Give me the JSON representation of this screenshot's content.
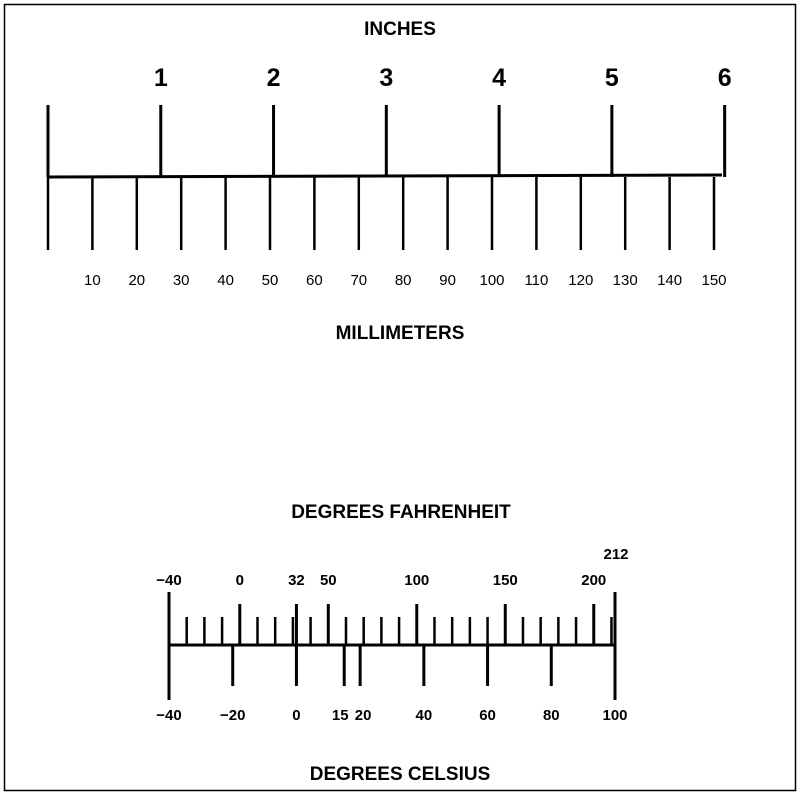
{
  "inch_scale": {
    "title": "INCHES",
    "unit_ticks": [
      {
        "value": 0,
        "label": ""
      },
      {
        "value": 1,
        "label": "1"
      },
      {
        "value": 2,
        "label": "2"
      },
      {
        "value": 3,
        "label": "3"
      },
      {
        "value": 4,
        "label": "4"
      },
      {
        "value": 5,
        "label": "5"
      },
      {
        "value": 6,
        "label": "6"
      }
    ]
  },
  "mm_scale": {
    "title": "MILLIMETERS",
    "ticks": [
      {
        "value": 0,
        "label": ""
      },
      {
        "value": 10,
        "label": "10"
      },
      {
        "value": 20,
        "label": "20"
      },
      {
        "value": 30,
        "label": "30"
      },
      {
        "value": 40,
        "label": "40"
      },
      {
        "value": 50,
        "label": "50"
      },
      {
        "value": 60,
        "label": "60"
      },
      {
        "value": 70,
        "label": "70"
      },
      {
        "value": 80,
        "label": "80"
      },
      {
        "value": 90,
        "label": "90"
      },
      {
        "value": 100,
        "label": "100"
      },
      {
        "value": 110,
        "label": "110"
      },
      {
        "value": 120,
        "label": "120"
      },
      {
        "value": 130,
        "label": "130"
      },
      {
        "value": 140,
        "label": "140"
      },
      {
        "value": 150,
        "label": "150"
      }
    ]
  },
  "fahrenheit_scale": {
    "title": "DEGREES FAHRENHEIT",
    "minor_step": 10,
    "range": [
      -40,
      212
    ],
    "labels": [
      {
        "value": -40,
        "label": "−40"
      },
      {
        "value": 0,
        "label": "0"
      },
      {
        "value": 32,
        "label": "32"
      },
      {
        "value": 50,
        "label": "50"
      },
      {
        "value": 100,
        "label": "100"
      },
      {
        "value": 150,
        "label": "150"
      },
      {
        "value": 200,
        "label": "200"
      },
      {
        "value": 212,
        "label": "212"
      }
    ]
  },
  "celsius_scale": {
    "title": "DEGREES CELSIUS",
    "ticks": [
      {
        "value": -40,
        "label": "−40"
      },
      {
        "value": -20,
        "label": "−20"
      },
      {
        "value": 0,
        "label": "0"
      },
      {
        "value": 15,
        "label": "15"
      },
      {
        "value": 20,
        "label": "20"
      },
      {
        "value": 40,
        "label": "40"
      },
      {
        "value": 60,
        "label": "60"
      },
      {
        "value": 80,
        "label": "80"
      },
      {
        "value": 100,
        "label": "100"
      }
    ]
  }
}
